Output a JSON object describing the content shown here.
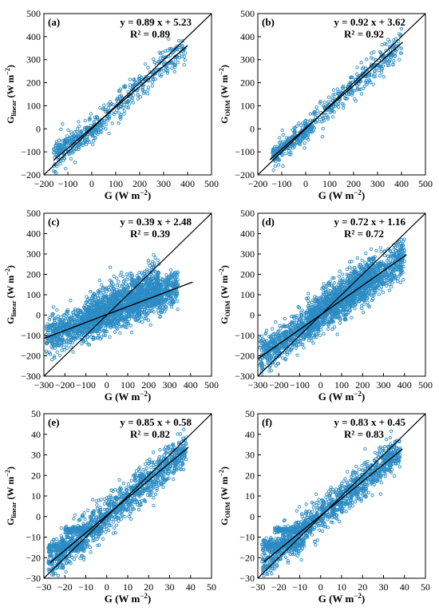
{
  "chart_data": [
    {
      "type": "scatter",
      "panel_label": "(a)",
      "xlabel_main": "G",
      "xlabel_unit": "(W m",
      "xlabel_sup": "−2",
      "xlabel_close": ")",
      "ylabel_main": "G",
      "ylabel_sub": "linear",
      "ylabel_unit": "(W m",
      "ylabel_sup": "−2",
      "ylabel_close": ")",
      "xlim": [
        -200,
        500
      ],
      "ylim": [
        -200,
        500
      ],
      "xticks": [
        -200,
        -100,
        0,
        100,
        200,
        300,
        400,
        500
      ],
      "yticks": [
        -200,
        -100,
        0,
        100,
        200,
        300,
        400,
        500
      ],
      "equation": "y = 0.89 x + 5.23",
      "r2": "R² = 0.89",
      "fit": {
        "slope": 0.89,
        "intercept": 5.23,
        "x_range": [
          -160,
          400
        ]
      },
      "one_to_one": {
        "x_range": [
          -200,
          500
        ]
      },
      "points": {
        "x_range": [
          -160,
          390
        ],
        "slope": 0.89,
        "intercept": 5.23,
        "spread": 35,
        "n": 420,
        "seed": 11,
        "regions": [
          {
            "x": [
              -160,
              40
            ],
            "slope": 0.55,
            "intercept": -5,
            "spread": 18,
            "n": 120
          }
        ]
      },
      "marker_color": "#2b8cc4"
    },
    {
      "type": "scatter",
      "panel_label": "(b)",
      "xlabel_main": "G",
      "xlabel_unit": "(W m",
      "xlabel_sup": "−2",
      "xlabel_close": ")",
      "ylabel_main": "G",
      "ylabel_sub": "OHM",
      "ylabel_unit": "(W m",
      "ylabel_sup": "−2",
      "ylabel_close": ")",
      "xlim": [
        -200,
        500
      ],
      "ylim": [
        -200,
        500
      ],
      "xticks": [
        -200,
        -100,
        0,
        100,
        200,
        300,
        400,
        500
      ],
      "yticks": [
        -200,
        -100,
        0,
        100,
        200,
        300,
        400,
        500
      ],
      "equation": "y = 0.92 x + 3.62",
      "r2": "R² = 0.92",
      "fit": {
        "slope": 0.92,
        "intercept": 3.62,
        "x_range": [
          -150,
          405
        ]
      },
      "one_to_one": {
        "x_range": [
          -200,
          500
        ]
      },
      "points": {
        "x_range": [
          -140,
          400
        ],
        "slope": 0.92,
        "intercept": 3.62,
        "spread": 28,
        "n": 460,
        "seed": 23,
        "regions": [
          {
            "x": [
              -140,
              20
            ],
            "slope": 0.7,
            "intercept": -15,
            "spread": 14,
            "n": 120
          }
        ]
      },
      "marker_color": "#2b8cc4"
    },
    {
      "type": "scatter",
      "panel_label": "(c)",
      "xlabel_main": "G",
      "xlabel_unit": "(W m",
      "xlabel_sup": "−2",
      "xlabel_close": ")",
      "ylabel_main": "G",
      "ylabel_sub": "linear",
      "ylabel_unit": "(W m",
      "ylabel_sup": "−2",
      "ylabel_close": ")",
      "xlim": [
        -300,
        500
      ],
      "ylim": [
        -300,
        500
      ],
      "xticks": [
        -300,
        -200,
        -100,
        0,
        100,
        200,
        300,
        400,
        500
      ],
      "yticks": [
        -300,
        -200,
        -100,
        0,
        100,
        200,
        300,
        400,
        500
      ],
      "equation": "y = 0.39 x + 2.48",
      "r2": "R² = 0.39",
      "fit": {
        "slope": 0.39,
        "intercept": 2.48,
        "x_range": [
          -300,
          410
        ]
      },
      "one_to_one": {
        "x_range": [
          -300,
          500
        ]
      },
      "points": {
        "x_range": [
          -290,
          340
        ],
        "slope": 0.39,
        "intercept": 2.48,
        "spread": 45,
        "n": 1600,
        "seed": 37,
        "regions": [
          {
            "x": [
              -100,
              250
            ],
            "slope": 0.5,
            "intercept": 40,
            "spread": 55,
            "n": 700
          }
        ]
      },
      "marker_color": "#2b8cc4"
    },
    {
      "type": "scatter",
      "panel_label": "(d)",
      "xlabel_main": "G",
      "xlabel_unit": "(W m",
      "xlabel_sup": "−2",
      "xlabel_close": ")",
      "ylabel_main": "G",
      "ylabel_sub": "OHM",
      "ylabel_unit": "(W m",
      "ylabel_sup": "−2",
      "ylabel_close": ")",
      "xlim": [
        -300,
        500
      ],
      "ylim": [
        -300,
        500
      ],
      "xticks": [
        -300,
        -200,
        -100,
        0,
        100,
        200,
        300,
        400,
        500
      ],
      "yticks": [
        -300,
        -200,
        -100,
        0,
        100,
        200,
        300,
        400,
        500
      ],
      "equation": "y = 0.72 x + 1.16",
      "r2": "R² = 0.72",
      "fit": {
        "slope": 0.72,
        "intercept": 1.16,
        "x_range": [
          -300,
          410
        ]
      },
      "one_to_one": {
        "x_range": [
          -300,
          500
        ]
      },
      "points": {
        "x_range": [
          -290,
          400
        ],
        "slope": 0.72,
        "intercept": 1.16,
        "spread": 45,
        "n": 1500,
        "seed": 53,
        "regions": [
          {
            "x": [
              -60,
              260
            ],
            "slope": 0.75,
            "intercept": 20,
            "spread": 50,
            "n": 700
          }
        ]
      },
      "marker_color": "#2b8cc4"
    },
    {
      "type": "scatter",
      "panel_label": "(e)",
      "xlabel_main": "G",
      "xlabel_unit": "(W m",
      "xlabel_sup": "−2",
      "xlabel_close": ")",
      "ylabel_main": "G",
      "ylabel_sub": "linear",
      "ylabel_unit": "(W m",
      "ylabel_sup": "−2",
      "ylabel_close": ")",
      "xlim": [
        -30,
        50
      ],
      "ylim": [
        -30,
        50
      ],
      "xticks": [
        -30,
        -20,
        -10,
        0,
        10,
        20,
        30,
        40,
        50
      ],
      "yticks": [
        -30,
        -20,
        -10,
        0,
        10,
        20,
        30,
        40,
        50
      ],
      "equation": "y = 0.85 x + 0.58",
      "r2": "R² = 0.82",
      "fit": {
        "slope": 0.85,
        "intercept": 0.58,
        "x_range": [
          -27,
          39
        ]
      },
      "one_to_one": {
        "x_range": [
          -30,
          50
        ]
      },
      "points": {
        "x_range": [
          -28,
          38
        ],
        "slope": 0.85,
        "intercept": 0.58,
        "spread": 4.5,
        "n": 1200,
        "seed": 71,
        "regions": [
          {
            "x": [
              -28,
              -10
            ],
            "slope": 0.0,
            "intercept": -14.5,
            "spread": 1.2,
            "n": 160
          },
          {
            "x": [
              -20,
              -2
            ],
            "slope": 0.0,
            "intercept": -6.5,
            "spread": 0.8,
            "n": 140
          }
        ]
      },
      "marker_color": "#2b8cc4"
    },
    {
      "type": "scatter",
      "panel_label": "(f)",
      "xlabel_main": "G",
      "xlabel_unit": "(W m",
      "xlabel_sup": "−2",
      "xlabel_close": ")",
      "ylabel_main": "G",
      "ylabel_sub": "OHM",
      "ylabel_unit": "(W m",
      "ylabel_sup": "−2",
      "ylabel_close": ")",
      "xlim": [
        -30,
        50
      ],
      "ylim": [
        -30,
        50
      ],
      "xticks": [
        -30,
        -20,
        -10,
        0,
        10,
        20,
        30,
        40,
        50
      ],
      "yticks": [
        -30,
        -20,
        -10,
        0,
        10,
        20,
        30,
        40,
        50
      ],
      "equation": "y = 0.83 x + 0.45",
      "r2": "R² = 0.83",
      "fit": {
        "slope": 0.83,
        "intercept": 0.45,
        "x_range": [
          -27,
          39
        ]
      },
      "one_to_one": {
        "x_range": [
          -30,
          50
        ]
      },
      "points": {
        "x_range": [
          -28,
          38
        ],
        "slope": 0.83,
        "intercept": 0.45,
        "spread": 4.0,
        "n": 1200,
        "seed": 89,
        "regions": [
          {
            "x": [
              -28,
              -8
            ],
            "slope": 0.0,
            "intercept": -13.5,
            "spread": 1.2,
            "n": 170
          },
          {
            "x": [
              -22,
              -4
            ],
            "slope": 0.0,
            "intercept": -6.5,
            "spread": 0.8,
            "n": 140
          }
        ]
      },
      "marker_color": "#2b8cc4"
    }
  ]
}
